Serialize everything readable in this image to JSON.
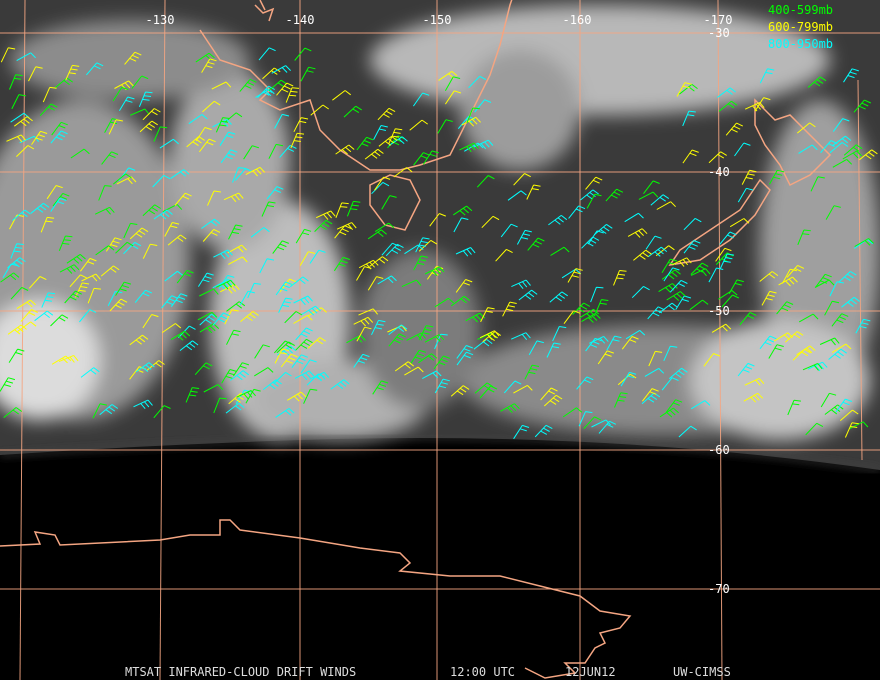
{
  "map": {
    "longitude_labels": [
      "-130",
      "-140",
      "-150",
      "-160",
      "-170"
    ],
    "latitude_labels": [
      "-30",
      "-40",
      "-50",
      "-60",
      "-70"
    ],
    "legend": [
      {
        "label": "400-599mb",
        "color": "#00ff00"
      },
      {
        "label": "600-799mb",
        "color": "#ffff00"
      },
      {
        "label": "800-950mb",
        "color": "#00ffff"
      }
    ],
    "footer": [
      "MTSAT INFRARED-CLOUD DRIFT WINDS",
      "12:00 UTC",
      "12JUN12",
      "UW-CIMSS"
    ]
  }
}
